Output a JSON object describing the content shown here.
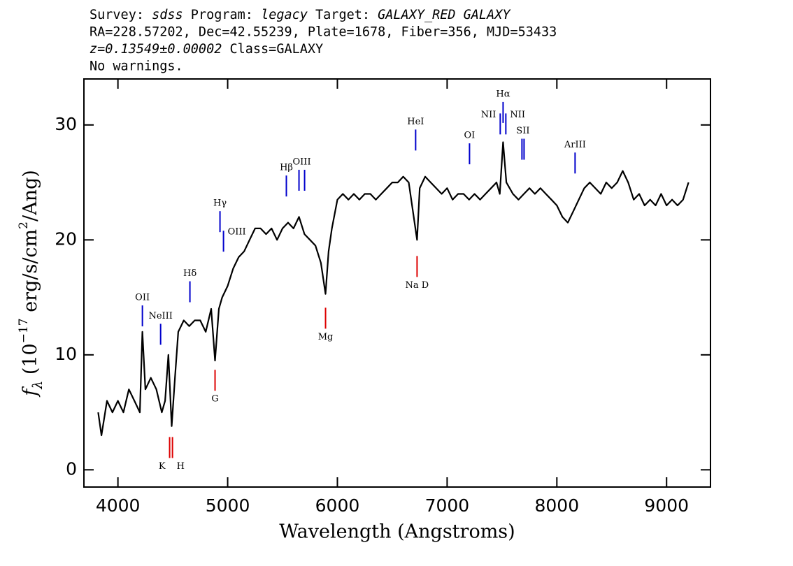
{
  "chart_data": {
    "type": "line",
    "header": [
      [
        {
          "text": "Survey: ",
          "italic": false
        },
        {
          "text": "sdss",
          "italic": true
        },
        {
          "text": " Program: ",
          "italic": false
        },
        {
          "text": "legacy",
          "italic": true
        },
        {
          "text": " Target: ",
          "italic": false
        },
        {
          "text": "GALAXY_RED GALAXY",
          "italic": true
        }
      ],
      [
        {
          "text": "RA=228.57202, Dec=42.55239, Plate=1678, Fiber=356, MJD=53433",
          "italic": false
        }
      ],
      [
        {
          "text": "z=0.13549±0.00002",
          "italic": true
        },
        {
          "text": " Class=GALAXY",
          "italic": false
        }
      ],
      [
        {
          "text": "No warnings.",
          "italic": false
        }
      ]
    ],
    "xlabel": "Wavelength (Angstroms)",
    "ylabel": [
      {
        "text": "f",
        "shift": "none"
      },
      {
        "text": "λ",
        "shift": "sub"
      },
      {
        "text": " (10",
        "shift": "none"
      },
      {
        "text": "−17",
        "shift": "sup"
      },
      {
        "text": " erg/s/cm",
        "shift": "none"
      },
      {
        "text": "2",
        "shift": "sup"
      },
      {
        "text": "/Ang)",
        "shift": "none"
      }
    ],
    "xlim": [
      3690,
      9400
    ],
    "ylim": [
      -1.5,
      34
    ],
    "xticks": [
      4000,
      5000,
      6000,
      7000,
      8000,
      9000
    ],
    "yticks": [
      0,
      10,
      20,
      30
    ],
    "series": [
      {
        "color": "#000000",
        "x": [
          3820,
          3850,
          3900,
          3950,
          4000,
          4050,
          4100,
          4150,
          4200,
          4223,
          4250,
          4300,
          4350,
          4400,
          4430,
          4460,
          4490,
          4520,
          4550,
          4600,
          4650,
          4700,
          4750,
          4800,
          4850,
          4885,
          4920,
          4950,
          5000,
          5050,
          5100,
          5150,
          5200,
          5250,
          5300,
          5350,
          5400,
          5450,
          5500,
          5550,
          5600,
          5650,
          5700,
          5750,
          5800,
          5850,
          5892,
          5920,
          5950,
          6000,
          6050,
          6100,
          6150,
          6200,
          6250,
          6300,
          6350,
          6400,
          6450,
          6500,
          6550,
          6600,
          6650,
          6726,
          6750,
          6800,
          6850,
          6900,
          6950,
          7000,
          7050,
          7100,
          7150,
          7200,
          7250,
          7300,
          7350,
          7400,
          7450,
          7480,
          7510,
          7540,
          7600,
          7650,
          7700,
          7750,
          7800,
          7850,
          7900,
          7950,
          8000,
          8050,
          8100,
          8150,
          8200,
          8250,
          8300,
          8350,
          8400,
          8450,
          8500,
          8550,
          8600,
          8650,
          8700,
          8750,
          8800,
          8850,
          8900,
          8950,
          9000,
          9050,
          9100,
          9150,
          9200
        ],
        "values": [
          5,
          3,
          6,
          5,
          6,
          5,
          7,
          6,
          5,
          12,
          7,
          8,
          7,
          5,
          6,
          10,
          3.8,
          8,
          12,
          13,
          12.5,
          13,
          13,
          12,
          14,
          9.5,
          14,
          15,
          16,
          17.5,
          18.5,
          19,
          20,
          21,
          21,
          20.5,
          21,
          20,
          21,
          21.5,
          21,
          22,
          20.5,
          20,
          19.5,
          18,
          15.3,
          19,
          21,
          23.5,
          24,
          23.5,
          24,
          23.5,
          24,
          24,
          23.5,
          24,
          24.5,
          25,
          25,
          25.5,
          25,
          20,
          24.5,
          25.5,
          25,
          24.5,
          24,
          24.5,
          23.5,
          24,
          24,
          23.5,
          24,
          23.5,
          24,
          24.5,
          25,
          24,
          28.5,
          25,
          24,
          23.5,
          24,
          24.5,
          24,
          24.5,
          24,
          23.5,
          23,
          22,
          21.5,
          22.5,
          23.5,
          24.5,
          25,
          24.5,
          24,
          25,
          24.5,
          25,
          26,
          25,
          23.5,
          24,
          23,
          23.5,
          23,
          24,
          23,
          23.5,
          23,
          23.5,
          25
        ]
      }
    ],
    "lines": [
      {
        "label": "OII",
        "x": [
          4223
        ],
        "y": 14.3,
        "kind": "emission",
        "color": "#0000cc",
        "align": "center"
      },
      {
        "label": "NeIII",
        "x": [
          4389
        ],
        "y": 12.7,
        "kind": "emission",
        "color": "#0000cc",
        "align": "center"
      },
      {
        "label": "Hδ",
        "x": [
          4656
        ],
        "y": 16.4,
        "kind": "emission",
        "color": "#0000cc",
        "align": "center"
      },
      {
        "label": "Hγ",
        "x": [
          4930
        ],
        "y": 22.5,
        "kind": "emission",
        "color": "#0000cc",
        "align": "center"
      },
      {
        "label": "OIII",
        "x": [
          4962
        ],
        "y": 20.8,
        "kind": "emission",
        "color": "#0000cc",
        "align": "right"
      },
      {
        "label": "Hβ",
        "x": [
          5535
        ],
        "y": 25.6,
        "kind": "emission",
        "color": "#0000cc",
        "align": "center"
      },
      {
        "label": "OIII",
        "x": [
          5650,
          5701
        ],
        "y": 26.1,
        "kind": "emission",
        "color": "#0000cc",
        "align": "center"
      },
      {
        "label": "HeI",
        "x": [
          6713
        ],
        "y": 29.6,
        "kind": "emission",
        "color": "#0000cc",
        "align": "center"
      },
      {
        "label": "OI",
        "x": [
          7204
        ],
        "y": 28.4,
        "kind": "emission",
        "color": "#0000cc",
        "align": "center"
      },
      {
        "label": "NII",
        "x": [
          7484
        ],
        "y": 31.0,
        "kind": "emission",
        "color": "#0000cc",
        "align": "left"
      },
      {
        "label": "Hα",
        "x": [
          7510
        ],
        "y": 32.0,
        "kind": "emission",
        "color": "#0000cc",
        "align": "center"
      },
      {
        "label": "NII",
        "x": [
          7535
        ],
        "y": 31.0,
        "kind": "emission",
        "color": "#0000cc",
        "align": "right"
      },
      {
        "label": "SII",
        "x": [
          7682,
          7701
        ],
        "y": 28.8,
        "kind": "emission",
        "color": "#0000cc",
        "align": "center"
      },
      {
        "label": "ArIII",
        "x": [
          8166
        ],
        "y": 27.6,
        "kind": "emission",
        "color": "#0000cc",
        "align": "center"
      },
      {
        "label": "K",
        "x": [
          4471
        ],
        "y": 2.85,
        "kind": "absorption",
        "color": "#dd0000",
        "align": "left"
      },
      {
        "label": "H",
        "x": [
          4497
        ],
        "y": 2.85,
        "kind": "absorption",
        "color": "#dd0000",
        "align": "right"
      },
      {
        "label": "G",
        "x": [
          4885
        ],
        "y": 8.7,
        "kind": "absorption",
        "color": "#dd0000",
        "align": "center"
      },
      {
        "label": "Mg",
        "x": [
          5892
        ],
        "y": 14.1,
        "kind": "absorption",
        "color": "#dd0000",
        "align": "center"
      },
      {
        "label": "Na D",
        "x": [
          6726
        ],
        "y": 18.6,
        "kind": "absorption",
        "color": "#dd0000",
        "align": "center"
      }
    ]
  }
}
